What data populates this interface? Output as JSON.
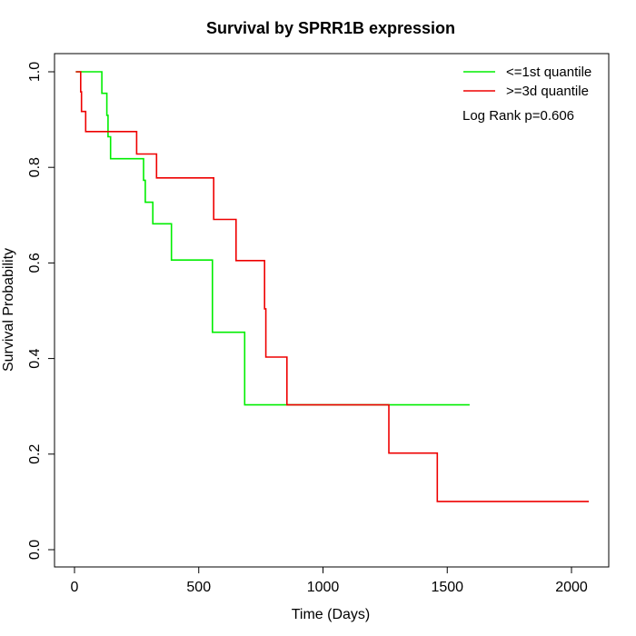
{
  "chart_data": {
    "type": "line",
    "title": "Survival by SPRR1B expression",
    "xlabel": "Time (Days)",
    "ylabel": "Survival Probability",
    "xlim": [
      0,
      2070
    ],
    "ylim": [
      0,
      1.0
    ],
    "x_ticks": [
      0,
      500,
      1000,
      1500,
      2000
    ],
    "x_tick_labels": [
      "0",
      "500",
      "1000",
      "1500",
      "2000"
    ],
    "y_ticks": [
      0.0,
      0.2,
      0.4,
      0.6,
      0.8,
      1.0
    ],
    "y_tick_labels": [
      "0.0",
      "0.2",
      "0.4",
      "0.6",
      "0.8",
      "1.0"
    ],
    "grid": false,
    "legend_position": "top-right",
    "annotation": "Log Rank p=0.606",
    "series": [
      {
        "name": "<=1st quantile",
        "color": "#00ee00",
        "step_points": [
          [
            5,
            1.0
          ],
          [
            110,
            1.0
          ],
          [
            110,
            0.955
          ],
          [
            130,
            0.955
          ],
          [
            130,
            0.909
          ],
          [
            135,
            0.909
          ],
          [
            135,
            0.864
          ],
          [
            145,
            0.864
          ],
          [
            145,
            0.818
          ],
          [
            278,
            0.818
          ],
          [
            278,
            0.773
          ],
          [
            285,
            0.773
          ],
          [
            285,
            0.727
          ],
          [
            315,
            0.727
          ],
          [
            315,
            0.682
          ],
          [
            390,
            0.682
          ],
          [
            390,
            0.606
          ],
          [
            555,
            0.606
          ],
          [
            555,
            0.455
          ],
          [
            685,
            0.455
          ],
          [
            685,
            0.303
          ],
          [
            1590,
            0.303
          ]
        ]
      },
      {
        "name": ">=3d quantile",
        "color": "#ee0000",
        "step_points": [
          [
            5,
            1.0
          ],
          [
            25,
            1.0
          ],
          [
            25,
            0.958
          ],
          [
            28,
            0.958
          ],
          [
            28,
            0.917
          ],
          [
            45,
            0.917
          ],
          [
            45,
            0.875
          ],
          [
            250,
            0.875
          ],
          [
            250,
            0.828
          ],
          [
            330,
            0.828
          ],
          [
            330,
            0.778
          ],
          [
            560,
            0.778
          ],
          [
            560,
            0.691
          ],
          [
            650,
            0.691
          ],
          [
            650,
            0.605
          ],
          [
            765,
            0.605
          ],
          [
            765,
            0.504
          ],
          [
            770,
            0.504
          ],
          [
            770,
            0.403
          ],
          [
            855,
            0.403
          ],
          [
            855,
            0.303
          ],
          [
            1265,
            0.303
          ],
          [
            1265,
            0.202
          ],
          [
            1460,
            0.202
          ],
          [
            1460,
            0.101
          ],
          [
            2070,
            0.101
          ]
        ]
      }
    ]
  }
}
